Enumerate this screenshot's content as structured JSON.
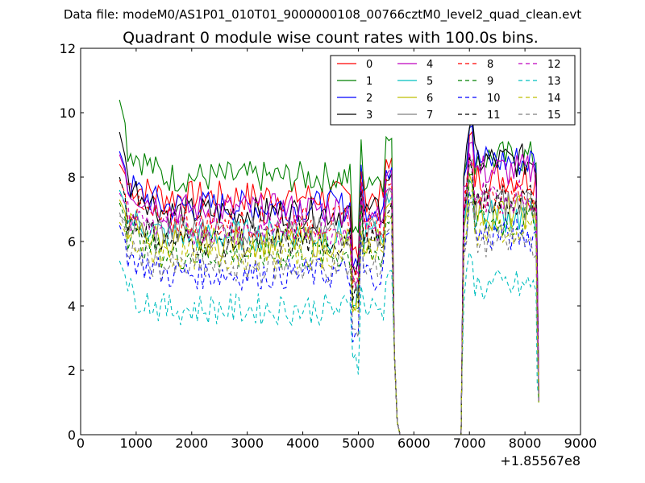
{
  "suptitle": "Data file: modeM0/AS1P01_010T01_9000000108_00766cztM0_level2_quad_clean.evt",
  "chart_data": {
    "type": "line",
    "title": "Quadrant 0 module wise count rates with 100.0s bins.",
    "xlabel": "",
    "ylabel": "",
    "x_offset_label": "+1.85567e8",
    "xlim": [
      0,
      9000
    ],
    "ylim": [
      0,
      12
    ],
    "xticks": [
      0,
      1000,
      2000,
      3000,
      4000,
      5000,
      6000,
      7000,
      8000,
      9000
    ],
    "yticks": [
      0,
      2,
      4,
      6,
      8,
      10,
      12
    ],
    "grid": false,
    "legend_position": "top-right",
    "legend_columns": 4,
    "x_segments": [
      [
        700,
        5750
      ],
      [
        5750,
        6850
      ],
      [
        6850,
        8250
      ]
    ],
    "series": [
      {
        "name": "0",
        "color": "#ff0000",
        "style": "solid",
        "level1": 7.4,
        "level2": 8.0,
        "start": 8.4
      },
      {
        "name": "1",
        "color": "#008000",
        "style": "solid",
        "level1": 8.0,
        "level2": 8.6,
        "start": 10.4
      },
      {
        "name": "2",
        "color": "#0000ff",
        "style": "solid",
        "level1": 7.1,
        "level2": 8.5,
        "start": 8.8
      },
      {
        "name": "3",
        "color": "#000000",
        "style": "solid",
        "level1": 6.9,
        "level2": 8.5,
        "start": 9.4
      },
      {
        "name": "4",
        "color": "#bf00bf",
        "style": "solid",
        "level1": 7.0,
        "level2": 8.2,
        "start": 8.7
      },
      {
        "name": "5",
        "color": "#00bfbf",
        "style": "solid",
        "level1": 6.2,
        "level2": 6.8,
        "start": 7.6
      },
      {
        "name": "6",
        "color": "#bfbf00",
        "style": "solid",
        "level1": 6.0,
        "level2": 6.9,
        "start": 7.3
      },
      {
        "name": "7",
        "color": "#808080",
        "style": "solid",
        "level1": 6.3,
        "level2": 7.2,
        "start": 6.8
      },
      {
        "name": "8",
        "color": "#ff0000",
        "style": "dashed",
        "level1": 6.6,
        "level2": 7.4,
        "start": 7.9
      },
      {
        "name": "9",
        "color": "#008000",
        "style": "dashed",
        "level1": 5.6,
        "level2": 6.6,
        "start": 7.2
      },
      {
        "name": "10",
        "color": "#0000ff",
        "style": "dashed",
        "level1": 5.0,
        "level2": 6.2,
        "start": 6.5
      },
      {
        "name": "11",
        "color": "#000000",
        "style": "dashed",
        "level1": 6.0,
        "level2": 7.3,
        "start": 8.0
      },
      {
        "name": "12",
        "color": "#bf00bf",
        "style": "dashed",
        "level1": 6.4,
        "level2": 7.4,
        "start": 7.5
      },
      {
        "name": "13",
        "color": "#00bfbf",
        "style": "dashed",
        "level1": 3.9,
        "level2": 4.6,
        "start": 5.4
      },
      {
        "name": "14",
        "color": "#bfbf00",
        "style": "dashed",
        "level1": 5.6,
        "level2": 6.3,
        "start": 6.6
      },
      {
        "name": "15",
        "color": "#808080",
        "style": "dashed",
        "level1": 5.2,
        "level2": 6.0,
        "start": 6.9
      }
    ]
  }
}
